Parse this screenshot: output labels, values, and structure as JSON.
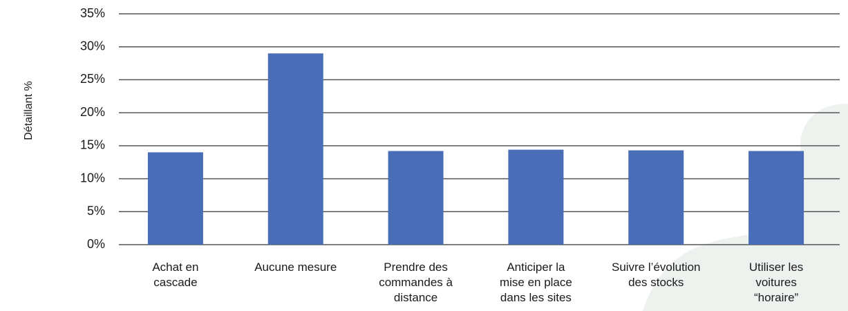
{
  "chart_data": {
    "type": "bar",
    "y_label": "Détaillant %",
    "categories": [
      "Achat en\ncascade",
      "Aucune mesure",
      "Prendre des\ncommandes à\ndistance",
      "Anticiper la\nmise en place\ndans les sites",
      "Suivre l’évolution\ndes stocks",
      "Utiliser les\nvoitures\n“horaire”"
    ],
    "values": [
      14.0,
      29.0,
      14.2,
      14.4,
      14.3,
      14.2
    ],
    "color": "#4a6db7",
    "ylim": [
      0,
      35
    ],
    "yticks": [
      {
        "value": 0,
        "label": "0%"
      },
      {
        "value": 5,
        "label": "5%"
      },
      {
        "value": 10,
        "label": "10%"
      },
      {
        "value": 15,
        "label": "15%"
      },
      {
        "value": 20,
        "label": "20%"
      },
      {
        "value": 25,
        "label": "25%"
      },
      {
        "value": 30,
        "label": "30%"
      },
      {
        "value": 35,
        "label": "35%"
      }
    ],
    "grid": true
  }
}
